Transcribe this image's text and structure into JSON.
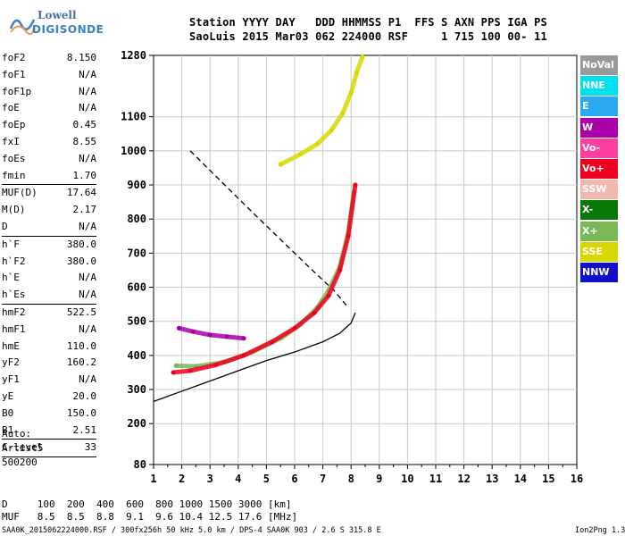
{
  "logo": {
    "line1": "Lowell",
    "line2": "DIGISONDE"
  },
  "header": {
    "line1": "Station YYYY DAY   DDD HHMMSS P1  FFS S AXN PPS IGA PS",
    "line2": "SaoLuis 2015 Mar03 062 224000 RSF     1 715 100 00- 11"
  },
  "params": [
    {
      "k": "foF2",
      "v": "8.150"
    },
    {
      "k": "foF1",
      "v": "N/A"
    },
    {
      "k": "foF1p",
      "v": "N/A"
    },
    {
      "k": "foE",
      "v": "N/A"
    },
    {
      "k": "foEp",
      "v": "0.45"
    },
    {
      "k": "fxI",
      "v": "8.55"
    },
    {
      "k": "foEs",
      "v": "N/A"
    },
    {
      "k": "fmin",
      "v": "1.70"
    },
    {
      "k": "MUF(D)",
      "v": "17.64"
    },
    {
      "k": "M(D)",
      "v": "2.17"
    },
    {
      "k": "D",
      "v": "N/A"
    },
    {
      "k": "h`F",
      "v": "380.0"
    },
    {
      "k": "h`F2",
      "v": "380.0"
    },
    {
      "k": "h`E",
      "v": "N/A"
    },
    {
      "k": "h`Es",
      "v": "N/A"
    },
    {
      "k": "hmF2",
      "v": "522.5"
    },
    {
      "k": "hmF1",
      "v": "N/A"
    },
    {
      "k": "hmE",
      "v": "110.0"
    },
    {
      "k": "yF2",
      "v": "160.2"
    },
    {
      "k": "yF1",
      "v": "N/A"
    },
    {
      "k": "yE",
      "v": "20.0"
    },
    {
      "k": "B0",
      "v": "150.0"
    },
    {
      "k": "B1",
      "v": "2.51"
    },
    {
      "k": "C-level",
      "v": "33"
    }
  ],
  "auto": {
    "l1": "Auto:",
    "l2": "Artist5",
    "l3": "500200"
  },
  "legend": [
    {
      "label": "NoVal",
      "bg": "#9a9a9a",
      "fg": "#ffffff"
    },
    {
      "label": "NNE",
      "bg": "#00e0ee",
      "fg": "#ffffff"
    },
    {
      "label": "E",
      "bg": "#2aa8f0",
      "fg": "#ffffff"
    },
    {
      "label": "W",
      "bg": "#a800a8",
      "fg": "#ffffff"
    },
    {
      "label": "Vo-",
      "bg": "#ff3fa0",
      "fg": "#ffffff"
    },
    {
      "label": "Vo+",
      "bg": "#f00020",
      "fg": "#ffffff"
    },
    {
      "label": "SSW",
      "bg": "#f2b8b0",
      "fg": "#ffffff"
    },
    {
      "label": "X-",
      "bg": "#087808",
      "fg": "#ffffff"
    },
    {
      "label": "X+",
      "bg": "#78b858",
      "fg": "#ffffff"
    },
    {
      "label": "SSE",
      "bg": "#d8d800",
      "fg": "#ffffff"
    },
    {
      "label": "NNW",
      "bg": "#1010c8",
      "fg": "#ffffff"
    }
  ],
  "bottom": {
    "d_line": "D     100  200  400  600  800 1000 1500 3000 [km]",
    "muf_line": "MUF   8.5  8.5  8.8  9.1  9.6 10.4 12.5 17.6 [MHz]"
  },
  "footer": {
    "left": "SAA0K_2015062224000.RSF / 300fx256h 50 kHz 5.0 km / DPS-4 SAA0K 903 / 2.6 S 315.8 E",
    "right": "Ion2Png 1.3.17"
  },
  "chart_data": {
    "type": "scatter",
    "title": "",
    "xlabel": "",
    "ylabel": "",
    "xlim": [
      1,
      16
    ],
    "ylim": [
      80,
      1280
    ],
    "x_ticks": [
      1,
      2,
      3,
      4,
      5,
      6,
      7,
      8,
      9,
      10,
      11,
      12,
      13,
      14,
      15,
      16
    ],
    "y_ticks": [
      80,
      200,
      300,
      400,
      500,
      600,
      700,
      800,
      900,
      1000,
      1100,
      1280
    ],
    "grid": true,
    "series": [
      {
        "name": "X+",
        "color": "#78b858",
        "x": [
          1.8,
          2.5,
          3.5,
          4.5,
          5.5,
          6.2,
          6.8,
          7.2,
          7.6,
          7.9,
          8.1
        ],
        "y": [
          370,
          368,
          380,
          410,
          450,
          490,
          540,
          590,
          660,
          760,
          880
        ]
      },
      {
        "name": "Vo+",
        "color": "#f00020",
        "x": [
          1.7,
          2.3,
          3.2,
          4.2,
          5.2,
          6.0,
          6.7,
          7.2,
          7.6,
          7.9,
          8.15
        ],
        "y": [
          350,
          355,
          372,
          400,
          440,
          480,
          525,
          575,
          650,
          750,
          900
        ]
      },
      {
        "name": "SSE",
        "color": "#d8d800",
        "x": [
          5.5,
          6.2,
          6.8,
          7.3,
          7.7,
          8.0,
          8.2,
          8.4
        ],
        "y": [
          960,
          990,
          1020,
          1060,
          1110,
          1170,
          1230,
          1275
        ]
      },
      {
        "name": "W",
        "color": "#a800a8",
        "x": [
          1.9,
          2.4,
          3.0,
          3.6,
          4.2
        ],
        "y": [
          480,
          470,
          460,
          455,
          450
        ]
      }
    ],
    "lines": [
      {
        "name": "",
        "color": "#000000",
        "style": "solid",
        "x": [
          1,
          2,
          3,
          4,
          5,
          6,
          7,
          7.6,
          8.0,
          8.15
        ],
        "y": [
          265,
          295,
          325,
          355,
          385,
          410,
          440,
          465,
          495,
          525
        ]
      },
      {
        "name": "",
        "color": "#000000",
        "style": "dashed",
        "x": [
          2.3,
          4.5,
          6.5,
          7.4,
          7.9
        ],
        "y": [
          1000,
          820,
          660,
          590,
          540
        ]
      }
    ]
  }
}
